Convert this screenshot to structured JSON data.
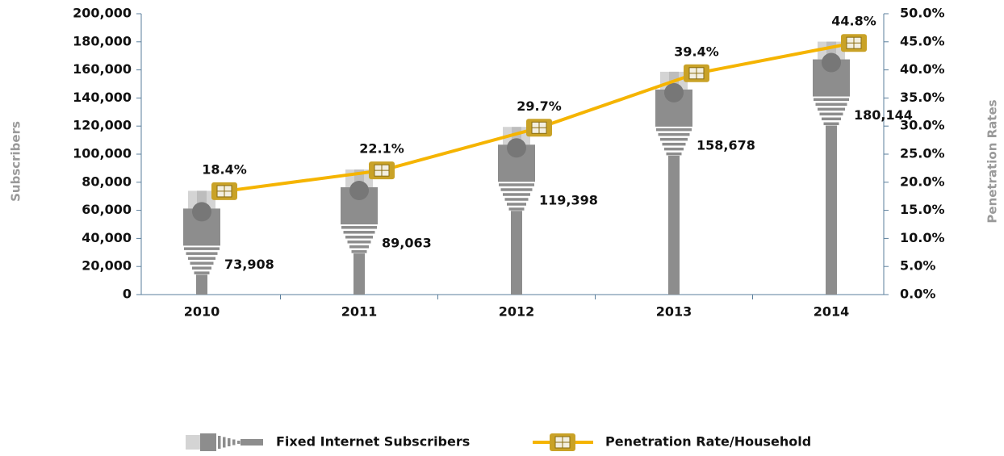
{
  "chart_data": {
    "type": "bar",
    "categories": [
      "2010",
      "2011",
      "2012",
      "2013",
      "2014"
    ],
    "series": [
      {
        "name": "Fixed Internet Subscribers",
        "type": "bar",
        "color": "#8a8a8a",
        "values": [
          73908,
          89063,
          119398,
          158678,
          180144
        ],
        "value_labels": [
          "73,908",
          "89,063",
          "119,398",
          "158,678",
          "180,144"
        ]
      },
      {
        "name": "Penetration Rate/Household",
        "type": "line",
        "axis": "y2",
        "color": "#f5b400",
        "values": [
          18.4,
          22.1,
          29.7,
          39.4,
          44.8
        ],
        "value_labels": [
          "18.4%",
          "22.1%",
          "29.7%",
          "39.4%",
          "44.8%"
        ]
      }
    ],
    "ylabel": "Subscribers",
    "y2label": "Penetration Rates",
    "ylim": [
      0,
      200000
    ],
    "yticks": [
      0,
      {
        "value": 20000,
        "label": "20,000"
      },
      {
        "value": 40000,
        "label": "40,000"
      },
      {
        "value": 60000,
        "label": "60,000"
      },
      {
        "value": 80000,
        "label": "80,000"
      },
      {
        "value": 100000,
        "label": "100,000"
      },
      {
        "value": 120000,
        "label": "120,000"
      },
      {
        "value": 140000,
        "label": "140,000"
      },
      {
        "value": 160000,
        "label": "160,000"
      },
      {
        "value": 180000,
        "label": "180,000"
      },
      {
        "value": 200000,
        "label": "200,000"
      }
    ],
    "y2lim": [
      0,
      50
    ],
    "y2ticks": [
      {
        "value": 0,
        "label": "0.0%"
      },
      {
        "value": 5,
        "label": "5.0%"
      },
      {
        "value": 10,
        "label": "10.0%"
      },
      {
        "value": 15,
        "label": "15.0%"
      },
      {
        "value": 20,
        "label": "20.0%"
      },
      {
        "value": 25,
        "label": "25.0%"
      },
      {
        "value": 30,
        "label": "30.0%"
      },
      {
        "value": 35,
        "label": "35.0%"
      },
      {
        "value": 40,
        "label": "40.0%"
      },
      {
        "value": 45,
        "label": "45.0%"
      },
      {
        "value": 50,
        "label": "50.0%"
      }
    ]
  }
}
